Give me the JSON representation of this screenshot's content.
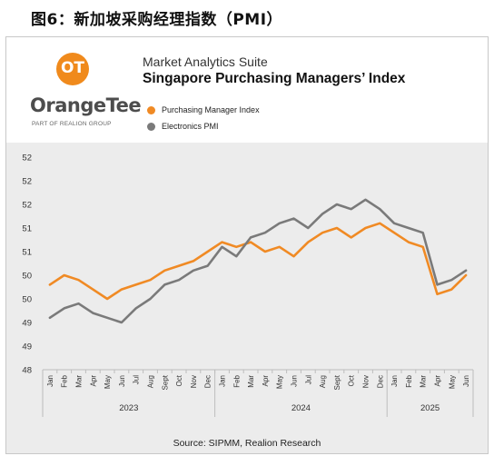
{
  "caption": "图6：新加坡采购经理指数（PMI）",
  "brand": {
    "logo_text": "OrangeTee",
    "logo_mark": "OT",
    "logo_subtitle": "PART OF REALION GROUP",
    "suite": "Market Analytics Suite",
    "title": "Singapore Purchasing Managers’ Index"
  },
  "legend": [
    {
      "label": "Purchasing Manager Index",
      "color": "#f08a24"
    },
    {
      "label": "Electronics PMI",
      "color": "#7a7a7a"
    }
  ],
  "source": "Source: SIPMM, Realion Research",
  "chart_data": {
    "type": "line",
    "title": "Singapore Purchasing Managers’ Index",
    "ylim": [
      48,
      52.5
    ],
    "y_ticks": [
      48,
      48.5,
      49,
      49.5,
      50,
      50.5,
      51,
      51.5,
      52,
      52.5
    ],
    "y_tick_labels": [
      "48",
      "49",
      "49",
      "50",
      "50",
      "51",
      "51",
      "52",
      "52",
      "52"
    ],
    "grid": false,
    "legend_position": "top",
    "x": [
      "Jan",
      "Feb",
      "Mar",
      "Apr",
      "May",
      "Jun",
      "Jul",
      "Aug",
      "Sept",
      "Oct",
      "Nov",
      "Dec",
      "Jan",
      "Feb",
      "Mar",
      "Apr",
      "May",
      "Jun",
      "Jul",
      "Aug",
      "Sept",
      "Oct",
      "Nov",
      "Dec",
      "Jan",
      "Feb",
      "Mar",
      "Apr",
      "May",
      "Jun"
    ],
    "year_groups": [
      {
        "label": "2023",
        "start": 0,
        "end": 11
      },
      {
        "label": "2024",
        "start": 12,
        "end": 23
      },
      {
        "label": "2025",
        "start": 24,
        "end": 29
      }
    ],
    "series": [
      {
        "name": "Purchasing Manager Index",
        "color": "#f08a24",
        "values": [
          49.8,
          50.0,
          49.9,
          49.7,
          49.5,
          49.7,
          49.8,
          49.9,
          50.1,
          50.2,
          50.3,
          50.5,
          50.7,
          50.6,
          50.7,
          50.5,
          50.6,
          50.4,
          50.7,
          50.9,
          51.0,
          50.8,
          51.0,
          51.1,
          50.9,
          50.7,
          50.6,
          49.6,
          49.7,
          50.0
        ]
      },
      {
        "name": "Electronics PMI",
        "color": "#7a7a7a",
        "values": [
          49.1,
          49.3,
          49.4,
          49.2,
          49.1,
          49.0,
          49.3,
          49.5,
          49.8,
          49.9,
          50.1,
          50.2,
          50.6,
          50.4,
          50.8,
          50.9,
          51.1,
          51.2,
          51.0,
          51.3,
          51.5,
          51.4,
          51.6,
          51.4,
          51.1,
          51.0,
          50.9,
          49.8,
          49.9,
          50.1
        ]
      }
    ]
  }
}
